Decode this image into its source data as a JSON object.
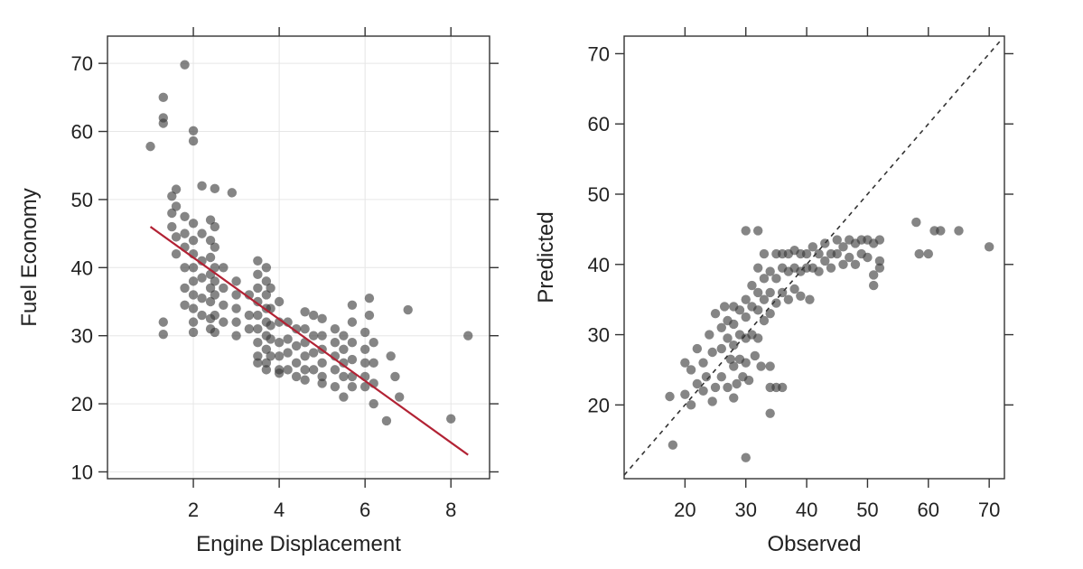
{
  "chart_data": [
    {
      "type": "scatter",
      "xlabel": "Engine Displacement",
      "ylabel": "Fuel Economy",
      "xlim": [
        0.0,
        8.9
      ],
      "ylim": [
        9.0,
        74.0
      ],
      "xticks": [
        "2",
        "4",
        "6",
        "8"
      ],
      "yticks": [
        "10",
        "20",
        "30",
        "40",
        "50",
        "60",
        "70"
      ],
      "grid": true,
      "point_color": "#3a3a3a",
      "fit_line": {
        "color": "#b22234",
        "x": [
          1.0,
          8.4
        ],
        "y": [
          46.0,
          12.5
        ]
      },
      "points": [
        [
          1.0,
          57.8
        ],
        [
          1.3,
          65.0
        ],
        [
          1.3,
          62.0
        ],
        [
          1.3,
          61.2
        ],
        [
          1.8,
          69.8
        ],
        [
          1.3,
          32.0
        ],
        [
          1.3,
          30.2
        ],
        [
          2.0,
          60.1
        ],
        [
          2.0,
          58.6
        ],
        [
          2.2,
          52.0
        ],
        [
          2.5,
          51.6
        ],
        [
          2.9,
          51.0
        ],
        [
          1.5,
          50.5
        ],
        [
          1.5,
          48.0
        ],
        [
          1.5,
          46.0
        ],
        [
          1.6,
          51.5
        ],
        [
          1.6,
          49.0
        ],
        [
          1.6,
          44.5
        ],
        [
          1.6,
          42.0
        ],
        [
          1.8,
          47.5
        ],
        [
          1.8,
          45.0
        ],
        [
          1.8,
          43.0
        ],
        [
          1.8,
          40.0
        ],
        [
          1.8,
          37.0
        ],
        [
          1.8,
          34.5
        ],
        [
          2.0,
          46.5
        ],
        [
          2.0,
          44.0
        ],
        [
          2.0,
          42.0
        ],
        [
          2.0,
          40.0
        ],
        [
          2.0,
          38.0
        ],
        [
          2.0,
          36.0
        ],
        [
          2.0,
          34.0
        ],
        [
          2.0,
          32.0
        ],
        [
          2.0,
          30.5
        ],
        [
          2.2,
          45.0
        ],
        [
          2.2,
          41.0
        ],
        [
          2.2,
          38.5
        ],
        [
          2.2,
          35.5
        ],
        [
          2.2,
          33.0
        ],
        [
          2.4,
          47.0
        ],
        [
          2.4,
          44.0
        ],
        [
          2.4,
          41.5
        ],
        [
          2.4,
          39.0
        ],
        [
          2.4,
          37.0
        ],
        [
          2.4,
          35.0
        ],
        [
          2.4,
          32.5
        ],
        [
          2.4,
          31.0
        ],
        [
          2.5,
          46.0
        ],
        [
          2.5,
          43.0
        ],
        [
          2.5,
          40.0
        ],
        [
          2.5,
          38.0
        ],
        [
          2.5,
          36.0
        ],
        [
          2.5,
          33.0
        ],
        [
          2.5,
          30.5
        ],
        [
          2.7,
          40.0
        ],
        [
          2.7,
          37.0
        ],
        [
          2.7,
          34.5
        ],
        [
          2.7,
          32.0
        ],
        [
          3.0,
          38.0
        ],
        [
          3.0,
          36.0
        ],
        [
          3.0,
          34.0
        ],
        [
          3.0,
          32.0
        ],
        [
          3.0,
          30.0
        ],
        [
          3.3,
          36.0
        ],
        [
          3.3,
          33.0
        ],
        [
          3.3,
          31.0
        ],
        [
          3.5,
          41.0
        ],
        [
          3.5,
          39.0
        ],
        [
          3.5,
          37.0
        ],
        [
          3.5,
          35.0
        ],
        [
          3.5,
          33.0
        ],
        [
          3.5,
          31.0
        ],
        [
          3.5,
          29.0
        ],
        [
          3.5,
          27.0
        ],
        [
          3.5,
          26.0
        ],
        [
          3.7,
          40.0
        ],
        [
          3.7,
          38.0
        ],
        [
          3.7,
          36.0
        ],
        [
          3.7,
          34.0
        ],
        [
          3.7,
          32.0
        ],
        [
          3.7,
          30.0
        ],
        [
          3.7,
          28.0
        ],
        [
          3.7,
          26.0
        ],
        [
          3.7,
          25.0
        ],
        [
          3.8,
          37.0
        ],
        [
          3.8,
          34.0
        ],
        [
          3.8,
          31.5
        ],
        [
          3.8,
          29.5
        ],
        [
          3.8,
          27.0
        ],
        [
          4.0,
          35.0
        ],
        [
          4.0,
          32.0
        ],
        [
          4.0,
          29.0
        ],
        [
          4.0,
          27.0
        ],
        [
          4.0,
          25.0
        ],
        [
          4.0,
          24.5
        ],
        [
          4.2,
          32.0
        ],
        [
          4.2,
          29.5
        ],
        [
          4.2,
          27.5
        ],
        [
          4.2,
          25.0
        ],
        [
          4.4,
          31.0
        ],
        [
          4.4,
          28.5
        ],
        [
          4.4,
          26.0
        ],
        [
          4.4,
          24.0
        ],
        [
          4.6,
          33.5
        ],
        [
          4.6,
          31.0
        ],
        [
          4.6,
          29.0
        ],
        [
          4.6,
          27.0
        ],
        [
          4.6,
          25.0
        ],
        [
          4.6,
          23.5
        ],
        [
          4.8,
          33.0
        ],
        [
          4.8,
          30.0
        ],
        [
          4.8,
          27.5
        ],
        [
          4.8,
          25.0
        ],
        [
          5.0,
          32.5
        ],
        [
          5.0,
          30.0
        ],
        [
          5.0,
          28.0
        ],
        [
          5.0,
          26.0
        ],
        [
          5.0,
          24.0
        ],
        [
          5.0,
          23.0
        ],
        [
          5.3,
          31.0
        ],
        [
          5.3,
          29.0
        ],
        [
          5.3,
          27.0
        ],
        [
          5.3,
          25.0
        ],
        [
          5.3,
          22.5
        ],
        [
          5.5,
          30.0
        ],
        [
          5.5,
          28.0
        ],
        [
          5.5,
          26.0
        ],
        [
          5.5,
          24.0
        ],
        [
          5.5,
          21.0
        ],
        [
          5.7,
          34.5
        ],
        [
          5.7,
          32.0
        ],
        [
          5.7,
          29.0
        ],
        [
          5.7,
          26.5
        ],
        [
          5.7,
          24.0
        ],
        [
          5.7,
          22.5
        ],
        [
          6.0,
          30.5
        ],
        [
          6.0,
          28.0
        ],
        [
          6.0,
          26.0
        ],
        [
          6.0,
          24.0
        ],
        [
          6.0,
          22.5
        ],
        [
          6.1,
          35.5
        ],
        [
          6.1,
          33.0
        ],
        [
          6.2,
          29.0
        ],
        [
          6.2,
          26.0
        ],
        [
          6.2,
          23.0
        ],
        [
          6.2,
          20.0
        ],
        [
          6.5,
          17.5
        ],
        [
          6.6,
          27.0
        ],
        [
          6.7,
          24.0
        ],
        [
          6.8,
          21.0
        ],
        [
          7.0,
          33.8
        ],
        [
          8.0,
          17.8
        ],
        [
          8.4,
          30.0
        ]
      ]
    },
    {
      "type": "scatter",
      "xlabel": "Observed",
      "ylabel": "Predicted",
      "xlim": [
        10.0,
        72.5
      ],
      "ylim": [
        9.5,
        72.5
      ],
      "xticks": [
        "20",
        "30",
        "40",
        "50",
        "60",
        "70"
      ],
      "yticks": [
        "20",
        "30",
        "40",
        "50",
        "60",
        "70"
      ],
      "grid": false,
      "point_color": "#3a3a3a",
      "reference_line": {
        "style": "dashed",
        "from": [
          10.0,
          10.0
        ],
        "to": [
          72.0,
          72.0
        ]
      },
      "points": [
        [
          17.5,
          21.2
        ],
        [
          18.0,
          14.3
        ],
        [
          20.0,
          21.5
        ],
        [
          21.0,
          20.0
        ],
        [
          20.0,
          26.0
        ],
        [
          21.0,
          25.0
        ],
        [
          22.0,
          23.0
        ],
        [
          23.0,
          22.0
        ],
        [
          22.0,
          28.0
        ],
        [
          23.0,
          26.0
        ],
        [
          23.5,
          24.0
        ],
        [
          24.0,
          30.0
        ],
        [
          24.5,
          27.5
        ],
        [
          25.0,
          33.0
        ],
        [
          25.0,
          22.5
        ],
        [
          24.5,
          20.5
        ],
        [
          26.0,
          31.0
        ],
        [
          26.0,
          28.0
        ],
        [
          26.0,
          24.0
        ],
        [
          26.5,
          34.0
        ],
        [
          27.0,
          32.0
        ],
        [
          27.0,
          29.5
        ],
        [
          27.5,
          26.5
        ],
        [
          27.0,
          22.5
        ],
        [
          28.0,
          34.0
        ],
        [
          28.0,
          31.5
        ],
        [
          28.0,
          28.5
        ],
        [
          28.0,
          25.5
        ],
        [
          28.5,
          23.0
        ],
        [
          28.0,
          21.0
        ],
        [
          29.0,
          33.5
        ],
        [
          29.0,
          30.0
        ],
        [
          29.0,
          26.5
        ],
        [
          29.5,
          24.0
        ],
        [
          30.0,
          44.8
        ],
        [
          30.0,
          35.0
        ],
        [
          30.0,
          32.5
        ],
        [
          30.0,
          29.5
        ],
        [
          30.0,
          26.0
        ],
        [
          30.0,
          12.5
        ],
        [
          30.5,
          23.5
        ],
        [
          31.0,
          37.0
        ],
        [
          31.0,
          34.0
        ],
        [
          31.0,
          30.0
        ],
        [
          31.5,
          27.0
        ],
        [
          32.0,
          44.8
        ],
        [
          32.0,
          39.5
        ],
        [
          32.0,
          36.0
        ],
        [
          32.0,
          33.5
        ],
        [
          32.0,
          29.5
        ],
        [
          32.5,
          25.5
        ],
        [
          33.0,
          41.5
        ],
        [
          33.0,
          38.0
        ],
        [
          33.0,
          35.0
        ],
        [
          33.0,
          32.0
        ],
        [
          34.0,
          39.0
        ],
        [
          34.0,
          36.0
        ],
        [
          34.0,
          33.0
        ],
        [
          34.0,
          25.5
        ],
        [
          34.0,
          22.5
        ],
        [
          34.0,
          18.8
        ],
        [
          35.0,
          41.5
        ],
        [
          35.0,
          38.0
        ],
        [
          35.0,
          34.5
        ],
        [
          35.0,
          22.5
        ],
        [
          36.0,
          41.5
        ],
        [
          36.0,
          39.5
        ],
        [
          36.0,
          36.0
        ],
        [
          36.0,
          22.5
        ],
        [
          37.0,
          41.5
        ],
        [
          37.0,
          39.0
        ],
        [
          37.0,
          35.0
        ],
        [
          38.0,
          42.0
        ],
        [
          38.0,
          39.5
        ],
        [
          38.0,
          36.5
        ],
        [
          39.0,
          41.5
        ],
        [
          39.0,
          39.0
        ],
        [
          39.0,
          35.5
        ],
        [
          40.0,
          41.5
        ],
        [
          40.0,
          39.5
        ],
        [
          40.5,
          35.0
        ],
        [
          41.0,
          42.5
        ],
        [
          41.0,
          39.5
        ],
        [
          42.0,
          41.5
        ],
        [
          42.0,
          39.0
        ],
        [
          43.0,
          43.0
        ],
        [
          43.0,
          40.5
        ],
        [
          44.0,
          41.5
        ],
        [
          44.0,
          39.5
        ],
        [
          45.0,
          43.5
        ],
        [
          45.0,
          41.5
        ],
        [
          46.0,
          42.5
        ],
        [
          46.0,
          40.0
        ],
        [
          47.0,
          43.5
        ],
        [
          47.0,
          41.0
        ],
        [
          48.0,
          43.0
        ],
        [
          48.0,
          40.0
        ],
        [
          49.0,
          43.5
        ],
        [
          49.0,
          41.5
        ],
        [
          50.0,
          43.5
        ],
        [
          50.0,
          41.0
        ],
        [
          51.0,
          43.0
        ],
        [
          51.0,
          38.5
        ],
        [
          51.0,
          37.0
        ],
        [
          52.0,
          43.5
        ],
        [
          52.0,
          40.5
        ],
        [
          52.0,
          39.5
        ],
        [
          58.0,
          46.0
        ],
        [
          58.5,
          41.5
        ],
        [
          60.0,
          41.5
        ],
        [
          61.0,
          44.8
        ],
        [
          62.0,
          44.8
        ],
        [
          65.0,
          44.8
        ],
        [
          70.0,
          42.5
        ]
      ]
    }
  ]
}
